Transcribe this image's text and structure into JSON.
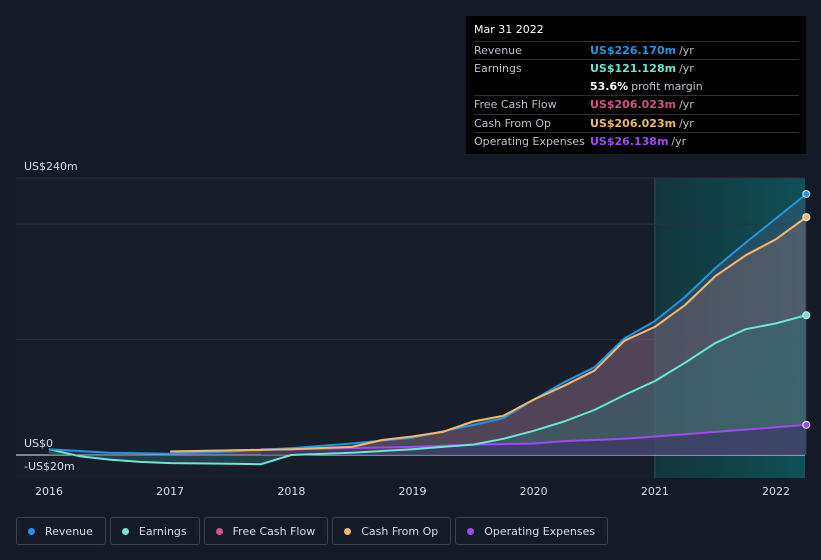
{
  "tooltip": {
    "date": "Mar 31 2022",
    "rows": [
      {
        "label": "Revenue",
        "value": "US$226.170m",
        "unit": "/yr",
        "color": "#2394df"
      },
      {
        "label": "Earnings",
        "value": "US$121.128m",
        "unit": "/yr",
        "color": "#6ce5d4"
      },
      {
        "margin_value": "53.6%",
        "margin_text": "profit margin"
      },
      {
        "label": "Free Cash Flow",
        "value": "US$206.023m",
        "unit": "/yr",
        "color": "#d7508a"
      },
      {
        "label": "Cash From Op",
        "value": "US$206.023m",
        "unit": "/yr",
        "color": "#f0b86e"
      },
      {
        "label": "Operating Expenses",
        "value": "US$26.138m",
        "unit": "/yr",
        "color": "#9d4bf0"
      }
    ]
  },
  "legend": [
    {
      "label": "Revenue",
      "color": "#2394df"
    },
    {
      "label": "Earnings",
      "color": "#6ce5d4"
    },
    {
      "label": "Free Cash Flow",
      "color": "#d7508a"
    },
    {
      "label": "Cash From Op",
      "color": "#f0b86e"
    },
    {
      "label": "Operating Expenses",
      "color": "#9d4bf0"
    }
  ],
  "chart_data": {
    "type": "area",
    "y_tick_labels": [
      {
        "value": 240,
        "label": "US$240m"
      },
      {
        "value": 0,
        "label": "US$0"
      },
      {
        "value": -20,
        "label": "-US$20m"
      }
    ],
    "ylim": [
      -20,
      240
    ],
    "xlim": [
      2015.75,
      2022.25
    ],
    "x_ticks": [
      2016,
      2017,
      2018,
      2019,
      2020,
      2021,
      2022
    ],
    "forecast_start": 2021.0,
    "series": [
      {
        "name": "Revenue",
        "color": "#2394df",
        "x": [
          2016,
          2016.5,
          2017,
          2017.5,
          2018,
          2018.5,
          2019,
          2019.5,
          2019.75,
          2020,
          2020.25,
          2020.5,
          2020.75,
          2021,
          2021.25,
          2021.5,
          2021.75,
          2022,
          2022.25
        ],
        "y": [
          5,
          2,
          1,
          3,
          6,
          10,
          15,
          26,
          32,
          48,
          63,
          76,
          101,
          116,
          137,
          162,
          184,
          205,
          226.17
        ]
      },
      {
        "name": "Earnings",
        "color": "#6ce5d4",
        "x": [
          2016,
          2016.25,
          2016.5,
          2016.75,
          2017,
          2017.5,
          2017.75,
          2018,
          2018.5,
          2019,
          2019.25,
          2019.5,
          2019.75,
          2020,
          2020.25,
          2020.5,
          2020.75,
          2021,
          2021.25,
          2021.5,
          2021.75,
          2022,
          2022.25
        ],
        "y": [
          5,
          -1,
          -4,
          -6,
          -7,
          -7.5,
          -8,
          0,
          2,
          5,
          7,
          9,
          14,
          21,
          29,
          39,
          52,
          64,
          80,
          97,
          109,
          114,
          121.128
        ]
      },
      {
        "name": "Free Cash Flow",
        "color": "#d7508a",
        "x": [
          2017,
          2017.5,
          2018,
          2018.5,
          2018.75,
          2019,
          2019.25,
          2019.5,
          2019.75,
          2020,
          2020.25,
          2020.5,
          2020.75,
          2021,
          2021.25,
          2021.5,
          2021.75,
          2022,
          2022.25
        ],
        "y": [
          3,
          4,
          5,
          7,
          13,
          16,
          20,
          29,
          34,
          48,
          60,
          73,
          99,
          111,
          130,
          155,
          173,
          187,
          206.023
        ]
      },
      {
        "name": "Cash From Op",
        "color": "#f0b86e",
        "x": [
          2017,
          2017.5,
          2018,
          2018.5,
          2018.75,
          2019,
          2019.25,
          2019.5,
          2019.75,
          2020,
          2020.25,
          2020.5,
          2020.75,
          2021,
          2021.25,
          2021.5,
          2021.75,
          2022,
          2022.25
        ],
        "y": [
          3,
          4,
          5,
          7,
          13,
          16,
          20,
          29,
          34,
          48,
          60,
          73,
          99,
          111,
          130,
          155,
          173,
          187,
          206.023
        ]
      },
      {
        "name": "Operating Expenses",
        "color": "#9d4bf0",
        "x": [
          2017.75,
          2018,
          2018.5,
          2019,
          2019.5,
          2020,
          2020.25,
          2020.5,
          2020.75,
          2021,
          2021.25,
          2021.5,
          2021.75,
          2022,
          2022.25
        ],
        "y": [
          5,
          5,
          6,
          7,
          9,
          10,
          12,
          13,
          14,
          16,
          18,
          20,
          22,
          24,
          26.138
        ]
      }
    ]
  }
}
